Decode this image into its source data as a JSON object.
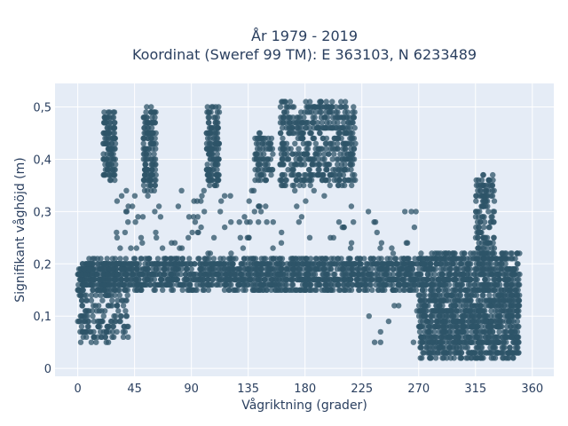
{
  "chart_data": {
    "type": "scatter",
    "title_line1": "År 1979 - 2019",
    "title_line2": "Koordinat (Sweref 99 TM): E 363103, N 6233489",
    "xlabel": "Vågriktning (grader)",
    "ylabel": "Signifikant våghöjd (m)",
    "xlim": [
      -18,
      377
    ],
    "ylim": [
      -0.015,
      0.545
    ],
    "x_ticks": [
      0,
      45,
      90,
      135,
      180,
      225,
      270,
      315,
      360
    ],
    "x_tick_labels": [
      "0",
      "45",
      "90",
      "135",
      "180",
      "225",
      "270",
      "315",
      "360"
    ],
    "y_ticks": [
      0,
      0.1,
      0.2,
      0.3,
      0.4,
      0.5
    ],
    "y_tick_labels": [
      "0",
      "0,1",
      "0,2",
      "0,3",
      "0,4",
      "0,5"
    ],
    "grid": true,
    "marker_color": "#2e5468",
    "background_color": "#e5ecf6",
    "series": [
      {
        "clusters": [
          {
            "x": [
              0,
              270
            ],
            "y": [
              0.15,
              0.21
            ],
            "n": 1500
          },
          {
            "x": [
              0,
              40
            ],
            "y": [
              0.05,
              0.2
            ],
            "n": 250
          },
          {
            "x": [
              20,
              30
            ],
            "y": [
              0.36,
              0.49
            ],
            "n": 120
          },
          {
            "x": [
              52,
              62
            ],
            "y": [
              0.34,
              0.5
            ],
            "n": 140
          },
          {
            "x": [
              102,
              112
            ],
            "y": [
              0.35,
              0.5
            ],
            "n": 140
          },
          {
            "x": [
              140,
              155
            ],
            "y": [
              0.36,
              0.45
            ],
            "n": 80
          },
          {
            "x": [
              160,
              220
            ],
            "y": [
              0.35,
              0.51
            ],
            "n": 500
          },
          {
            "x": [
              30,
              220
            ],
            "y": [
              0.22,
              0.34
            ],
            "n": 100
          },
          {
            "x": [
              270,
              350
            ],
            "y": [
              0.02,
              0.22
            ],
            "n": 1400
          },
          {
            "x": [
              315,
              330
            ],
            "y": [
              0.2,
              0.37
            ],
            "n": 150
          },
          {
            "x": [
              230,
              270
            ],
            "y": [
              0.04,
              0.3
            ],
            "n": 30
          }
        ]
      }
    ]
  }
}
